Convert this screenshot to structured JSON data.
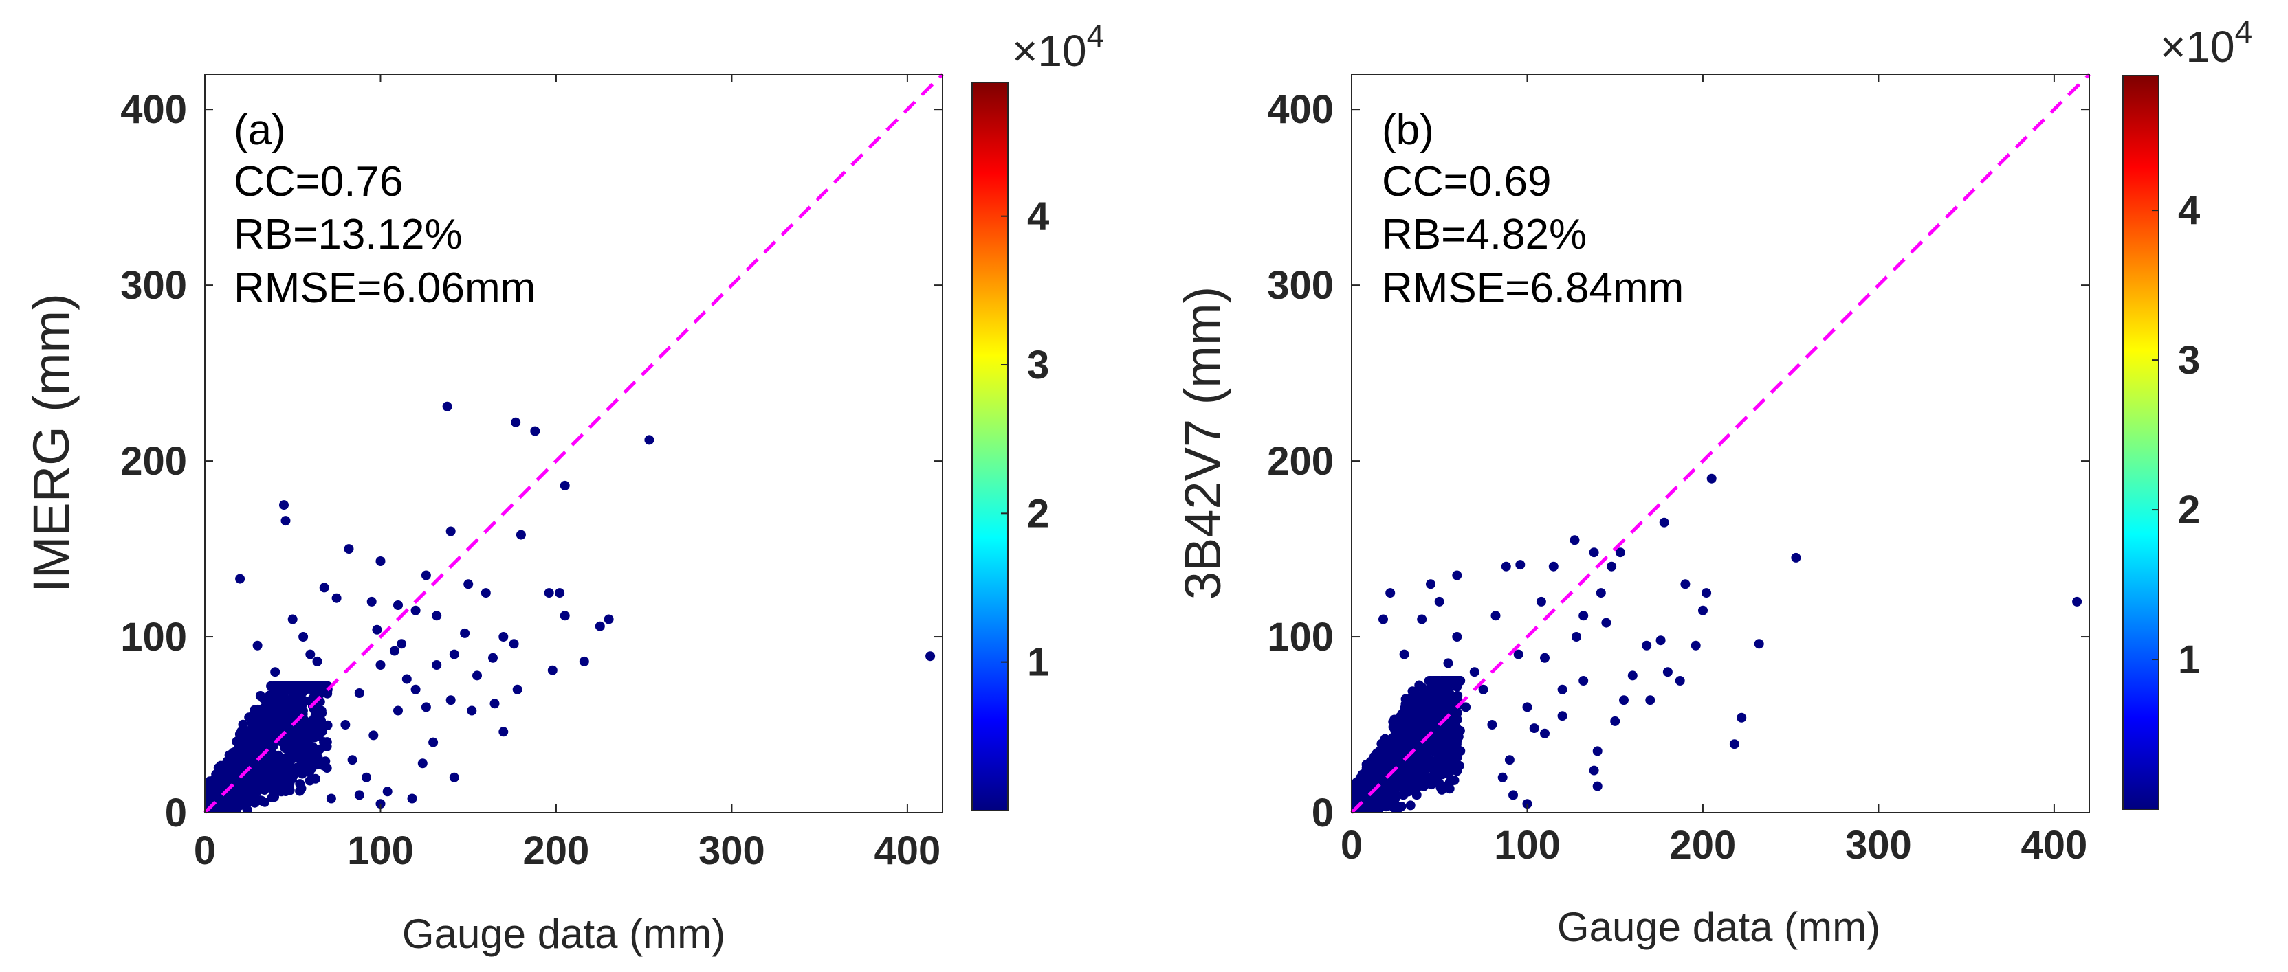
{
  "figure": {
    "colorbar_exponent_base": "×10",
    "colorbar_exponent_power": "4",
    "colormap": [
      "#00007f",
      "#0000ff",
      "#007fff",
      "#00ffff",
      "#7fff7f",
      "#ffff00",
      "#ff7f00",
      "#ff0000",
      "#7f0000"
    ],
    "identity_line_color": "#ff00ff",
    "point_color": "#000080"
  },
  "chart_data": [
    {
      "type": "scatter",
      "panel_label": "(a)",
      "xlabel": "Gauge data (mm)",
      "ylabel": "IMERG (mm)",
      "xlim": [
        0,
        420
      ],
      "ylim": [
        0,
        420
      ],
      "xticks": [
        0,
        100,
        200,
        300,
        400
      ],
      "yticks": [
        0,
        100,
        200,
        300,
        400
      ],
      "stats": [
        "CC=0.76",
        "RB=13.12%",
        "RMSE=6.06mm"
      ],
      "identity_line": true,
      "colorbar": {
        "ticks": [
          1,
          2,
          3,
          4
        ],
        "range": [
          0,
          4.9
        ]
      },
      "points": [
        [
          138,
          231
        ],
        [
          177,
          222
        ],
        [
          188,
          217
        ],
        [
          253,
          212
        ],
        [
          205,
          186
        ],
        [
          45,
          175
        ],
        [
          46,
          166
        ],
        [
          180,
          158
        ],
        [
          140,
          160
        ],
        [
          82,
          150
        ],
        [
          100,
          143
        ],
        [
          126,
          135
        ],
        [
          150,
          130
        ],
        [
          160,
          125
        ],
        [
          196,
          125
        ],
        [
          202,
          125
        ],
        [
          68,
          128
        ],
        [
          75,
          122
        ],
        [
          95,
          120
        ],
        [
          110,
          118
        ],
        [
          132,
          112
        ],
        [
          120,
          115
        ],
        [
          230,
          110
        ],
        [
          225,
          106
        ],
        [
          170,
          100
        ],
        [
          176,
          96
        ],
        [
          205,
          112
        ],
        [
          216,
          86
        ],
        [
          198,
          81
        ],
        [
          164,
          88
        ],
        [
          413,
          89
        ],
        [
          142,
          90
        ],
        [
          132,
          84
        ],
        [
          108,
          92
        ],
        [
          120,
          70
        ],
        [
          110,
          58
        ],
        [
          140,
          64
        ],
        [
          152,
          58
        ],
        [
          165,
          62
        ],
        [
          170,
          46
        ],
        [
          142,
          20
        ],
        [
          118,
          8
        ],
        [
          100,
          5
        ],
        [
          104,
          12
        ],
        [
          130,
          40
        ],
        [
          100,
          84
        ],
        [
          88,
          68
        ],
        [
          96,
          44
        ],
        [
          84,
          30
        ],
        [
          92,
          20
        ],
        [
          80,
          50
        ],
        [
          60,
          90
        ],
        [
          50,
          110
        ],
        [
          30,
          95
        ],
        [
          20,
          133
        ],
        [
          56,
          100
        ],
        [
          64,
          86
        ],
        [
          70,
          70
        ],
        [
          40,
          80
        ],
        [
          35,
          60
        ],
        [
          98,
          104
        ],
        [
          112,
          96
        ],
        [
          148,
          102
        ],
        [
          115,
          76
        ],
        [
          126,
          60
        ],
        [
          155,
          78
        ],
        [
          178,
          70
        ],
        [
          124,
          28
        ],
        [
          88,
          10
        ],
        [
          72,
          8
        ]
      ],
      "dense_cluster": {
        "x_max": 70,
        "y_max": 72
      }
    },
    {
      "type": "scatter",
      "panel_label": "(b)",
      "xlabel": "Gauge data (mm)",
      "ylabel": "3B42V7 (mm)",
      "xlim": [
        0,
        420
      ],
      "ylim": [
        0,
        420
      ],
      "xticks": [
        0,
        100,
        200,
        300,
        400
      ],
      "yticks": [
        0,
        100,
        200,
        300,
        400
      ],
      "stats": [
        "CC=0.69",
        "RB=4.82%",
        "RMSE=6.84mm"
      ],
      "identity_line": true,
      "colorbar": {
        "ticks": [
          1,
          2,
          3,
          4
        ],
        "range": [
          0,
          4.9
        ]
      },
      "points": [
        [
          205,
          190
        ],
        [
          178,
          165
        ],
        [
          127,
          155
        ],
        [
          153,
          148
        ],
        [
          253,
          145
        ],
        [
          96,
          141
        ],
        [
          88,
          140
        ],
        [
          115,
          140
        ],
        [
          138,
          148
        ],
        [
          148,
          140
        ],
        [
          190,
          130
        ],
        [
          202,
          125
        ],
        [
          200,
          115
        ],
        [
          142,
          125
        ],
        [
          132,
          112
        ],
        [
          413,
          120
        ],
        [
          232,
          96
        ],
        [
          176,
          98
        ],
        [
          168,
          95
        ],
        [
          196,
          95
        ],
        [
          180,
          80
        ],
        [
          187,
          75
        ],
        [
          222,
          54
        ],
        [
          218,
          39
        ],
        [
          170,
          64
        ],
        [
          155,
          64
        ],
        [
          140,
          35
        ],
        [
          138,
          24
        ],
        [
          140,
          15
        ],
        [
          150,
          52
        ],
        [
          128,
          100
        ],
        [
          132,
          75
        ],
        [
          110,
          88
        ],
        [
          120,
          70
        ],
        [
          100,
          60
        ],
        [
          95,
          90
        ],
        [
          82,
          112
        ],
        [
          70,
          80
        ],
        [
          60,
          100
        ],
        [
          30,
          90
        ],
        [
          22,
          125
        ],
        [
          45,
          130
        ],
        [
          50,
          120
        ],
        [
          75,
          70
        ],
        [
          80,
          50
        ],
        [
          90,
          30
        ],
        [
          86,
          20
        ],
        [
          100,
          5
        ],
        [
          92,
          10
        ],
        [
          110,
          45
        ],
        [
          65,
          60
        ],
        [
          55,
          85
        ],
        [
          40,
          110
        ],
        [
          120,
          55
        ],
        [
          160,
          78
        ],
        [
          104,
          48
        ],
        [
          145,
          108
        ],
        [
          108,
          120
        ],
        [
          60,
          135
        ],
        [
          18,
          110
        ]
      ],
      "dense_cluster": {
        "x_max": 62,
        "y_max": 75
      }
    }
  ]
}
